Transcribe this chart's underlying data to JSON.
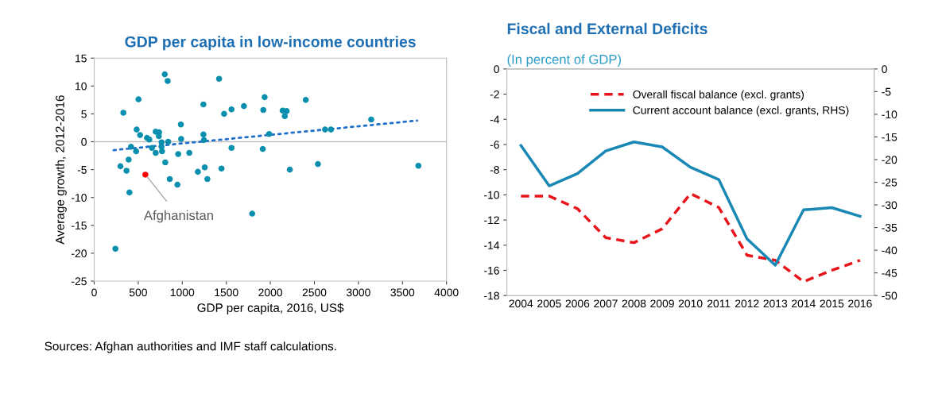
{
  "chart_data": [
    {
      "type": "scatter",
      "title": "GDP per capita in low-income countries",
      "xlabel": "GDP per capita, 2016, US$",
      "ylabel": "Average growth, 2012-2016",
      "xlim": [
        0,
        4000
      ],
      "xticks": [
        0,
        500,
        1000,
        1500,
        2000,
        2500,
        3000,
        3500,
        4000
      ],
      "ylim": [
        -25,
        15
      ],
      "yticks": [
        -25,
        -20,
        -15,
        -10,
        -5,
        0,
        5,
        10,
        15
      ],
      "grid": false,
      "legend": false,
      "ref_lines": [
        {
          "axis": "y",
          "value": 0,
          "color": "#bfbfbf"
        }
      ],
      "annotations": [
        {
          "text": "Afghanistan",
          "x": 581,
          "y": -5.9
        },
        "Sources: Afghan authorities and IMF staff calculations."
      ],
      "series": [
        {
          "type": "scatter",
          "color": "#0a8fae",
          "marker": "circle",
          "x": [
            801,
            834,
            1418,
            503,
            331,
            1240,
            1475,
            1559,
            1700,
            1935,
            1920,
            482,
            521,
            599,
            626,
            698,
            737,
            734,
            984,
            987,
            765,
            840,
            765,
            770,
            698,
            656,
            476,
            418,
            391,
            298,
            367,
            400,
            581,
            807,
            858,
            945,
            954,
            1080,
            1240,
            1246,
            1177,
            1255,
            1285,
            1445,
            1559,
            1794,
            1914,
            1986,
            241,
            2402,
            2140,
            2185,
            2164,
            2621,
            2688,
            3145,
            2221,
            2540,
            3681
          ],
          "values": [
            12.1,
            10.9,
            11.3,
            7.6,
            5.2,
            6.7,
            5.0,
            5.8,
            6.4,
            8.0,
            5.7,
            2.2,
            1.2,
            0.7,
            0.4,
            1.8,
            1.7,
            1.0,
            3.1,
            0.5,
            -0.1,
            0.0,
            -0.9,
            -1.7,
            -2.0,
            -1.1,
            -1.7,
            -0.9,
            -3.2,
            -4.4,
            -5.2,
            -9.1,
            -5.9,
            -3.7,
            -6.7,
            -7.7,
            -2.2,
            -2.0,
            1.3,
            0.3,
            -5.4,
            -4.6,
            -6.7,
            -4.8,
            -1.1,
            -12.9,
            -1.3,
            1.4,
            -19.2,
            7.5,
            5.6,
            5.5,
            4.6,
            2.2,
            2.2,
            4.0,
            -5.0,
            -4.0,
            -4.3
          ],
          "colors": [
            "#0a8fae",
            "#0a8fae",
            "#0a8fae",
            "#0a8fae",
            "#0a8fae",
            "#0a8fae",
            "#0a8fae",
            "#0a8fae",
            "#0a8fae",
            "#0a8fae",
            "#0a8fae",
            "#0a8fae",
            "#0a8fae",
            "#0a8fae",
            "#0a8fae",
            "#0a8fae",
            "#0a8fae",
            "#0a8fae",
            "#0a8fae",
            "#0a8fae",
            "#0a8fae",
            "#0a8fae",
            "#0a8fae",
            "#0a8fae",
            "#0a8fae",
            "#0a8fae",
            "#0a8fae",
            "#0a8fae",
            "#0a8fae",
            "#0a8fae",
            "#0a8fae",
            "#0a8fae",
            "#ff0000",
            "#0a8fae",
            "#0a8fae",
            "#0a8fae",
            "#0a8fae",
            "#0a8fae",
            "#0a8fae",
            "#0a8fae",
            "#0a8fae",
            "#0a8fae",
            "#0a8fae",
            "#0a8fae",
            "#0a8fae",
            "#0a8fae",
            "#0a8fae",
            "#0a8fae",
            "#0a8fae",
            "#0a8fae",
            "#0a8fae",
            "#0a8fae",
            "#0a8fae",
            "#0a8fae",
            "#0a8fae",
            "#0a8fae",
            "#0a8fae",
            "#0a8fae",
            "#0a8fae"
          ]
        },
        {
          "type": "line",
          "color": "#1f6fc8",
          "line_style": "dotted",
          "marker": "none",
          "x": [
            220,
            3666
          ],
          "values": [
            -1.5,
            3.8
          ]
        }
      ]
    },
    {
      "type": "line",
      "title": "Fiscal and External Deficits",
      "subtitle": "(In percent of GDP)",
      "categories": [
        "2004",
        "2005",
        "2006",
        "2007",
        "2008",
        "2009",
        "2010",
        "2011",
        "2012",
        "2013",
        "2014",
        "2015",
        "2016"
      ],
      "ylim": [
        -18,
        0
      ],
      "yticks": [
        -18,
        -16,
        -14,
        -12,
        -10,
        -8,
        -6,
        -4,
        -2,
        0
      ],
      "y2lim": [
        -50,
        0
      ],
      "y2ticks": [
        -50,
        -45,
        -40,
        -35,
        -30,
        -25,
        -20,
        -15,
        -10,
        -5,
        0
      ],
      "grid": false,
      "legend": "top",
      "series": [
        {
          "name": "Overall fiscal balance (excl. grants)",
          "color": "#e8141c",
          "line_style": "dashed",
          "values": [
            -10.1,
            -10.1,
            -11.1,
            -13.4,
            -13.8,
            -12.7,
            -9.9,
            -11.0,
            -14.8,
            -15.2,
            -16.9,
            -16.0,
            -15.2
          ]
        },
        {
          "name": "Current account balance (excl. grants, RHS)",
          "color": "#1a88b4",
          "line_style": "solid",
          "axis": "y2",
          "values": [
            -16.9,
            -25.8,
            -23.1,
            -18.1,
            -16.1,
            -17.2,
            -21.7,
            -24.4,
            -37.5,
            -43.3,
            -31.1,
            -30.6,
            -32.5
          ]
        }
      ]
    }
  ]
}
